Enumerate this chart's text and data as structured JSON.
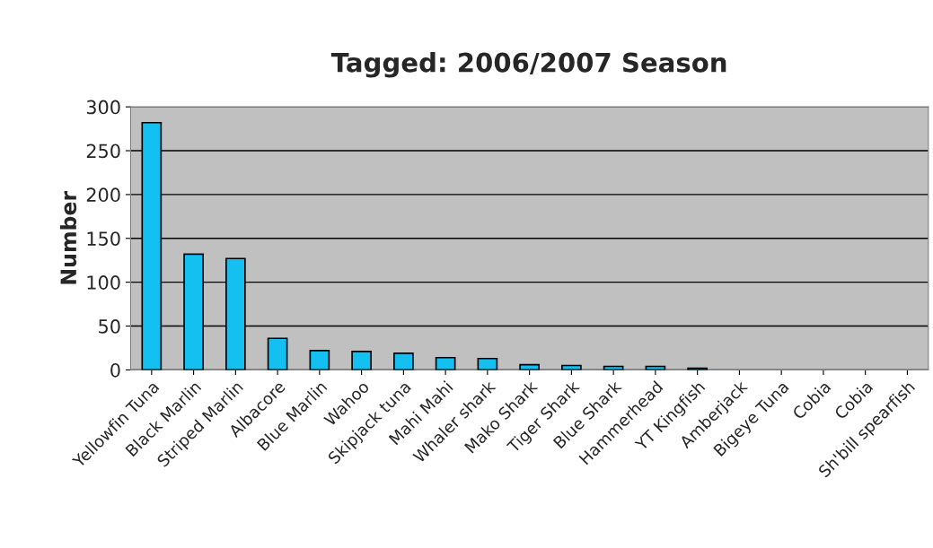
{
  "chart_data": {
    "type": "bar",
    "title": "Tagged: 2006/2007 Season",
    "ylabel": "Number",
    "categories": [
      "Yellowfin Tuna",
      "Black Marlin",
      "Striped Marlin",
      "Albacore",
      "Blue Marlin",
      "Wahoo",
      "Skipjack tuna",
      "Mahi Mahi",
      "Whaler shark",
      "Mako Shark",
      "Tiger Shark",
      "Blue Shark",
      "Hammerhead",
      "YT Kingfish",
      "Amberjack",
      "Bigeye Tuna",
      "Cobia",
      "Cobia",
      "Sh'bill spearfish"
    ],
    "values": [
      282,
      132,
      127,
      36,
      22,
      21,
      19,
      14,
      13,
      6,
      5,
      4,
      4,
      2,
      0,
      0,
      0,
      0,
      0
    ],
    "color": "#14c0f0",
    "ylim": [
      0,
      300
    ],
    "yticks": [
      0,
      50,
      100,
      150,
      200,
      250,
      300
    ],
    "grid": "y"
  }
}
